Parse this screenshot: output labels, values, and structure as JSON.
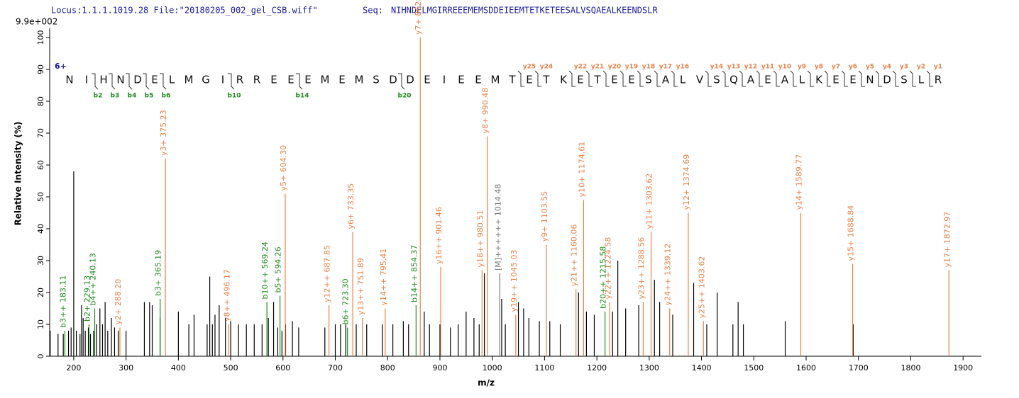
{
  "chart_data": {
    "type": "stem",
    "header": "Locus:1.1.1.1019.28 File:\"20180205_002_gel_CSB.wiff\"",
    "seq_label": "Seq:",
    "sequence": "NIHNDELMGIRREEEMEMSDDEIEEMTETKETEESALVSQAEALKEENDSLR",
    "scale_label": "9.9e+002",
    "charge_label": "6+",
    "residues": [
      "N",
      "I",
      "H",
      "N",
      "D",
      "E",
      "L",
      "M",
      "G",
      "I",
      "R",
      "R",
      "E",
      "E",
      "E",
      "M",
      "E",
      "M",
      "S",
      "D",
      "D",
      "E",
      "I",
      "E",
      "E",
      "M",
      "T",
      "E",
      "T",
      "K",
      "E",
      "T",
      "E",
      "E",
      "S",
      "A",
      "L",
      "V",
      "S",
      "Q",
      "A",
      "E",
      "A",
      "L",
      "K",
      "E",
      "E",
      "N",
      "D",
      "S",
      "L",
      "R"
    ],
    "b_markers": [
      "b2",
      "b3",
      "b4",
      "b5",
      "b6",
      "b10",
      "b14",
      "b20"
    ],
    "y_markers": [
      "y25",
      "y24",
      "y20",
      "y22",
      "y21",
      "y19",
      "y18",
      "y17",
      "y16",
      "y14",
      "y13",
      "y12",
      "y11",
      "y10",
      "y9",
      "y8",
      "y7",
      "y6",
      "y5",
      "y4",
      "y3",
      "y2",
      "y1"
    ],
    "x_label": "m/z",
    "y_label": "Relative   Intensity (%)",
    "xlim": [
      154,
      1935
    ],
    "ylim": [
      0,
      103
    ],
    "xticks": [
      200,
      300,
      400,
      500,
      600,
      700,
      800,
      900,
      1000,
      1100,
      1200,
      1300,
      1400,
      1500,
      1600,
      1700,
      1800,
      1900
    ],
    "yticks": [
      0,
      10,
      20,
      30,
      40,
      50,
      60,
      70,
      80,
      90,
      100
    ],
    "series": [
      {
        "color": "#000000",
        "x": [
          155,
          170,
          180,
          190,
          195,
          200,
          205,
          212,
          215,
          218,
          222,
          228,
          232,
          238,
          244,
          250,
          255,
          260,
          265,
          272,
          278,
          285,
          300,
          335,
          345,
          350,
          365,
          400,
          420,
          430,
          455,
          460,
          465,
          470,
          478,
          490,
          500,
          515,
          530,
          545,
          560,
          572,
          582,
          590,
          598,
          605,
          618,
          630,
          680,
          700,
          710,
          720,
          740,
          760,
          790,
          810,
          830,
          840,
          870,
          880,
          900,
          920,
          935,
          950,
          965,
          975,
          985,
          1018,
          1025,
          1050,
          1060,
          1070,
          1090,
          1110,
          1130,
          1165,
          1180,
          1195,
          1230,
          1240,
          1255,
          1280,
          1310,
          1320,
          1345,
          1385,
          1410,
          1430,
          1460,
          1470,
          1480,
          1560,
          1690
        ],
        "values": [
          8,
          7,
          7,
          8,
          9,
          58,
          8,
          7,
          16,
          12,
          8,
          9,
          7,
          8,
          10,
          15,
          10,
          17,
          8,
          12,
          9,
          8,
          8,
          17,
          17,
          16,
          12,
          14,
          10,
          13,
          10,
          25,
          10,
          13,
          16,
          12,
          11,
          10,
          10,
          10,
          10,
          12,
          17,
          9,
          8,
          10,
          11,
          9,
          9,
          10,
          10,
          10,
          10,
          10,
          10,
          10,
          11,
          10,
          14,
          10,
          10,
          9,
          10,
          14,
          12,
          10,
          26,
          18,
          10,
          17,
          15,
          12,
          11,
          11,
          10,
          20,
          14,
          13,
          14,
          30,
          15,
          16,
          24,
          17,
          13,
          23,
          10,
          20,
          10,
          17,
          10,
          11,
          10
        ]
      },
      {
        "color": "#e8824a",
        "x": [
          375.23,
          604.3,
          733.35,
          862.36,
          990.48,
          1103.55,
          1174.61,
          1303.62,
          1374.69,
          1589.77,
          1688.84,
          1872.97,
          901.46,
          980.51,
          1045.03,
          1160.06,
          1224.58,
          1288.56,
          1339.12,
          1403.62,
          687.85,
          751.89,
          795.41,
          496.17,
          288.2
        ],
        "values": [
          62,
          51,
          39,
          100,
          69,
          35,
          49,
          39,
          45,
          45,
          29,
          27,
          28,
          27,
          13,
          21,
          17,
          17,
          15,
          11,
          16,
          12,
          15,
          10,
          9
        ],
        "labels": [
          "y3+ 375.23",
          "y5+ 604.30",
          "y6+ 733.35",
          "y7+ 862.36",
          "y8+ 990.48",
          "y9+ 1103.55",
          "y10+ 1174.61",
          "y11+ 1303.62",
          "y12+ 1374.69",
          "y14+ 1589.77",
          "y15+ 1688.84",
          "y17+ 1872.97",
          "y16++ 901.46",
          "y18++ 980.51",
          "y19++ 1045.03",
          "y21++ 1160.06",
          "y22++ 1224.58",
          "y23++ 1288.56",
          "y24++ 1339.12",
          "y25++ 1403.62",
          "y12++ 687.85",
          "y13++ 751.89",
          "y14++ 795.41",
          "y8++ 496.17",
          "y2+ 288.20"
        ]
      },
      {
        "color": "#1e8c1e",
        "x": [
          183.11,
          229.13,
          240.13,
          365.19,
          569.24,
          594.26,
          723.3,
          854.37,
          1215.58
        ],
        "values": [
          8,
          10,
          15,
          18,
          17,
          19,
          9,
          16,
          14
        ],
        "labels": [
          "b3++ 183.11",
          "b2+ 229.13",
          "b4++ 240.13",
          "b3+ 365.19",
          "b10++ 569.24",
          "b5+ 594.26",
          "b6+ 723.30",
          "b14++ 854.37",
          "b20++ 1215.58"
        ]
      },
      {
        "color": "#777777",
        "x": [
          1014.48
        ],
        "values": [
          26
        ],
        "labels": [
          "[M]++++++ 1014.48"
        ]
      }
    ]
  }
}
